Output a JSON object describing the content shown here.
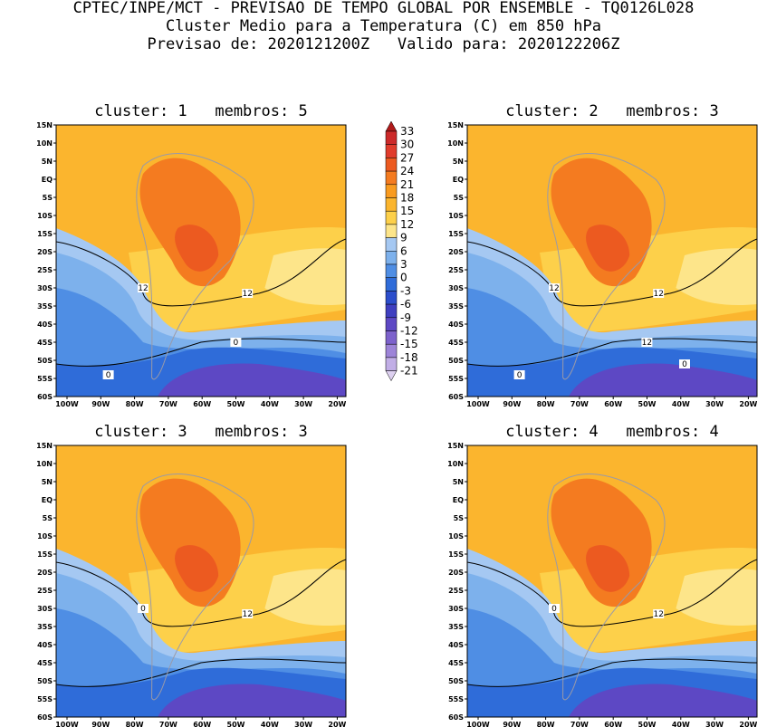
{
  "header": {
    "line1": "CPTEC/INPE/MCT - PREVISAO DE TEMPO GLOBAL POR ENSEMBLE - TQ0126L028",
    "line2": "Cluster Medio para a Temperatura (C) em 850 hPa",
    "line3": "Previsao de: 2020121200Z   Valido para: 2020122206Z"
  },
  "axes": {
    "lat_labels": [
      "15N",
      "10N",
      "5N",
      "EQ",
      "5S",
      "10S",
      "15S",
      "20S",
      "25S",
      "30S",
      "35S",
      "40S",
      "45S",
      "50S",
      "55S",
      "60S"
    ],
    "lon_labels": [
      "100W",
      "90W",
      "80W",
      "70W",
      "60W",
      "50W",
      "40W",
      "30W",
      "20W"
    ]
  },
  "colorbar": {
    "levels": [
      "33",
      "30",
      "27",
      "24",
      "21",
      "18",
      "15",
      "12",
      "9",
      "6",
      "3",
      "0",
      "-3",
      "-6",
      "-9",
      "-12",
      "-15",
      "-18",
      "-21"
    ],
    "colors": [
      "#b01a1a",
      "#cc2a2a",
      "#e03c2c",
      "#ec5a20",
      "#f47b20",
      "#f99b1f",
      "#fbb52e",
      "#fdd04a",
      "#fde58a",
      "#a5c8f2",
      "#7db1ec",
      "#4f8ee4",
      "#2f6cd9",
      "#2c4ecc",
      "#3f3fc0",
      "#5d48c4",
      "#7d62cc",
      "#9d84d8",
      "#c1aee6",
      "#ddd0f0"
    ]
  },
  "panels": [
    {
      "title": "cluster: 1   membros: 5",
      "contour_labels": [
        "12",
        "12",
        "0",
        "0"
      ]
    },
    {
      "title": "cluster: 2   membros: 3",
      "contour_labels": [
        "12",
        "12",
        "12",
        "0",
        "0"
      ]
    },
    {
      "title": "cluster: 3   membros: 3",
      "contour_labels": [
        "12",
        "0"
      ]
    },
    {
      "title": "cluster: 4   membros: 4",
      "contour_labels": [
        "12",
        "0"
      ]
    }
  ]
}
